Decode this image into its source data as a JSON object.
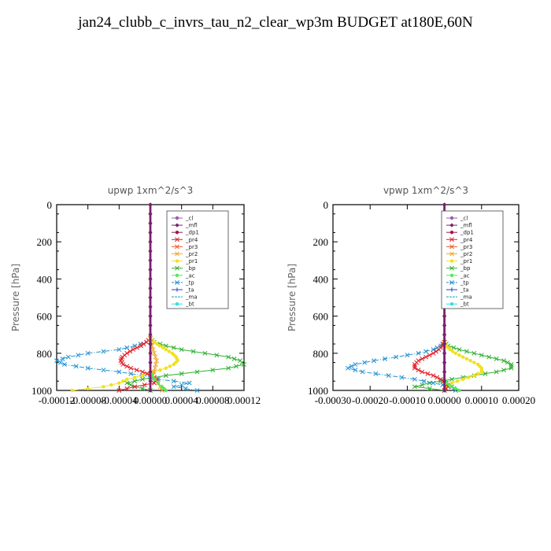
{
  "title": "jan24_clubb_c_invrs_tau_n2_clear_wp3m  BUDGET at180E,60N",
  "legend": [
    {
      "name": "_cl",
      "color": "#9b59b6",
      "marker": "circle"
    },
    {
      "name": "_mfl",
      "color": "#7b1f6a",
      "marker": "diamond"
    },
    {
      "name": "_dp1",
      "color": "#a0184c",
      "marker": "circle"
    },
    {
      "name": "_pr4",
      "color": "#e0202a",
      "marker": "x"
    },
    {
      "name": "_pr3",
      "color": "#f05a28",
      "marker": "x"
    },
    {
      "name": "_pr2",
      "color": "#f0a830",
      "marker": "x"
    },
    {
      "name": "_pr1",
      "color": "#f0e020",
      "marker": "circle"
    },
    {
      "name": "_bp",
      "color": "#30b030",
      "marker": "x"
    },
    {
      "name": "_ac",
      "color": "#58e858",
      "marker": "circle"
    },
    {
      "name": "_tp",
      "color": "#2090d0",
      "marker": "x"
    },
    {
      "name": "_ta",
      "color": "#2040c0",
      "marker": "plus"
    },
    {
      "name": "_ma",
      "color": "#10a0c0",
      "marker": "none"
    },
    {
      "name": "_bt",
      "color": "#30e0e0",
      "marker": "circle"
    }
  ],
  "chart_data": [
    {
      "type": "line",
      "title": "upwp   1xm^2/s^3",
      "ylabel": "Pressure [hPa]",
      "xlabel": "",
      "xlim": [
        -0.00012,
        0.00012
      ],
      "ylim": [
        1000,
        0
      ],
      "xticks": [
        "-0.00012",
        "-0.00008",
        "-0.00004",
        "0.00000",
        "0.00004",
        "0.00008",
        "0.00012"
      ],
      "xtick_values": [
        -0.00012,
        -8e-05,
        -4e-05,
        0.0,
        4e-05,
        8e-05,
        0.00012
      ],
      "yticks": [
        0,
        200,
        400,
        600,
        800,
        1000
      ],
      "legend_position": "top-right",
      "series": [
        {
          "name": "_bp",
          "y": [
            720,
            740,
            760,
            780,
            800,
            820,
            840,
            860,
            880,
            900,
            920,
            940,
            960,
            980,
            1000
          ],
          "x": [
            0,
            5e-06,
            2e-05,
            4e-05,
            7e-05,
            0.0001,
            0.000115,
            0.00012,
            0.0001,
            6e-05,
            2e-05,
            -1e-05,
            -3e-05,
            -2e-05,
            0
          ]
        },
        {
          "name": "_tp",
          "y": [
            720,
            740,
            760,
            780,
            800,
            820,
            840,
            860,
            880,
            900,
            920,
            940,
            960,
            980,
            1000
          ],
          "x": [
            0,
            -5e-06,
            -2e-05,
            -4e-05,
            -8e-05,
            -0.000105,
            -0.00012,
            -0.00011,
            -8e-05,
            -4e-05,
            -1e-05,
            1e-05,
            5e-05,
            3e-05,
            6e-05
          ]
        },
        {
          "name": "_pr1",
          "y": [
            720,
            740,
            760,
            780,
            800,
            820,
            840,
            860,
            880,
            900,
            920,
            940,
            960,
            980,
            1000
          ],
          "x": [
            0,
            5e-06,
            1.2e-05,
            2e-05,
            2.8e-05,
            3.3e-05,
            3.5e-05,
            3e-05,
            2e-05,
            5e-06,
            -1e-05,
            -3e-05,
            -4e-05,
            -6e-05,
            -0.0001
          ]
        },
        {
          "name": "_pr4",
          "y": [
            720,
            740,
            760,
            780,
            800,
            820,
            840,
            860,
            880,
            900,
            920,
            940,
            960,
            980,
            1000
          ],
          "x": [
            0,
            -5e-06,
            -1.2e-05,
            -2.2e-05,
            -3e-05,
            -3.6e-05,
            -3.8e-05,
            -3.5e-05,
            -2.5e-05,
            -1e-05,
            2e-06,
            8e-06,
            5e-06,
            -2e-05,
            -4e-05
          ]
        },
        {
          "name": "_pr2",
          "y": [
            720,
            760,
            800,
            840,
            880,
            920,
            960,
            1000
          ],
          "x": [
            0,
            2e-06,
            5e-06,
            8e-06,
            6e-06,
            3e-06,
            1e-05,
            1.5e-05
          ]
        },
        {
          "name": "_ac",
          "y": [
            900,
            940,
            980,
            1000
          ],
          "x": [
            0,
            5e-06,
            1.5e-05,
            2e-05
          ]
        },
        {
          "name": "_cl",
          "y": [
            0,
            100,
            200,
            300,
            400,
            500,
            600,
            700,
            800,
            900,
            1000
          ],
          "x": [
            0,
            0,
            0,
            0,
            0,
            0,
            0,
            0,
            0,
            0,
            0
          ]
        },
        {
          "name": "_mfl",
          "y": [
            0,
            100,
            200,
            300,
            400,
            500,
            600,
            700,
            800,
            900,
            1000
          ],
          "x": [
            0,
            0,
            0,
            0,
            0,
            0,
            0,
            0,
            0,
            0,
            0
          ]
        }
      ]
    },
    {
      "type": "line",
      "title": "vpwp   1xm^2/s^3",
      "ylabel": "Pressure [hPa]",
      "xlabel": "",
      "xlim": [
        -0.0003,
        0.0002
      ],
      "ylim": [
        1000,
        0
      ],
      "xticks": [
        "-0.00030",
        "-0.00020",
        "-0.00010",
        "0.00000",
        "0.00010",
        "0.00020"
      ],
      "xtick_values": [
        -0.0003,
        -0.0002,
        -0.0001,
        0.0,
        0.0001,
        0.0002
      ],
      "yticks": [
        0,
        200,
        400,
        600,
        800,
        1000
      ],
      "legend_position": "top-right",
      "series": [
        {
          "name": "_bp",
          "y": [
            740,
            760,
            780,
            800,
            820,
            840,
            860,
            880,
            900,
            920,
            940,
            960,
            980,
            1000
          ],
          "x": [
            0,
            1e-05,
            4e-05,
            8e-05,
            0.00012,
            0.00016,
            0.00018,
            0.00018,
            0.00014,
            8e-05,
            2e-05,
            -4e-05,
            -8e-05,
            0
          ]
        },
        {
          "name": "_tp",
          "y": [
            740,
            760,
            780,
            800,
            820,
            840,
            860,
            880,
            900,
            920,
            940,
            960,
            980,
            1000
          ],
          "x": [
            0,
            -1e-05,
            -3e-05,
            -7e-05,
            -0.00013,
            -0.00019,
            -0.00024,
            -0.00026,
            -0.00022,
            -0.00015,
            -8e-05,
            -3e-05,
            2e-05,
            3e-05
          ]
        },
        {
          "name": "_pr1",
          "y": [
            740,
            760,
            780,
            800,
            820,
            840,
            860,
            880,
            900,
            920,
            940,
            960,
            980,
            1000
          ],
          "x": [
            0,
            5e-06,
            1.5e-05,
            3e-05,
            5e-05,
            7e-05,
            9e-05,
            0.0001,
            0.0001,
            8e-05,
            5e-05,
            2e-05,
            5e-06,
            0
          ]
        },
        {
          "name": "_pr4",
          "y": [
            740,
            760,
            780,
            800,
            820,
            840,
            860,
            880,
            900,
            920,
            940,
            960,
            980,
            1000
          ],
          "x": [
            0,
            -5e-06,
            -1.5e-05,
            -3e-05,
            -5e-05,
            -7e-05,
            -8e-05,
            -8e-05,
            -6e-05,
            -3e-05,
            -1e-05,
            5e-06,
            1e-05,
            0
          ]
        },
        {
          "name": "_ac",
          "y": [
            940,
            960,
            980,
            1000
          ],
          "x": [
            0,
            5e-06,
            2e-05,
            4e-05
          ]
        },
        {
          "name": "_cl",
          "y": [
            0,
            100,
            200,
            300,
            400,
            500,
            600,
            700,
            800,
            900,
            1000
          ],
          "x": [
            0,
            0,
            0,
            0,
            0,
            0,
            0,
            0,
            0,
            0,
            0
          ]
        },
        {
          "name": "_mfl",
          "y": [
            0,
            100,
            200,
            300,
            400,
            500,
            600,
            700,
            800,
            900,
            1000
          ],
          "x": [
            0,
            0,
            0,
            0,
            0,
            0,
            0,
            0,
            0,
            0,
            0
          ]
        }
      ]
    }
  ]
}
